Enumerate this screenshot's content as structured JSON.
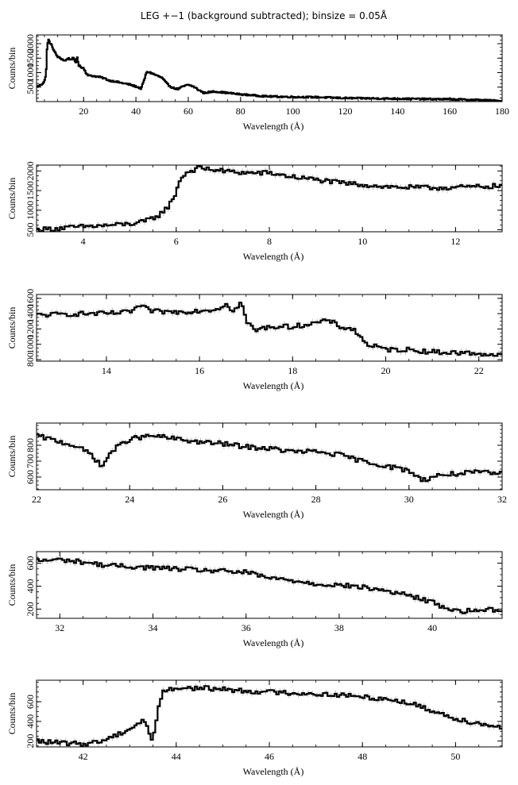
{
  "title": "LEG +−1 (background subtracted); binsize = 0.05Å",
  "colors": {
    "line": "#000000",
    "error": "#9a9a9a",
    "axis": "#000000"
  },
  "chart_data": [
    {
      "type": "line",
      "xlabel": "Wavelength (Å)",
      "ylabel": "Counts/bin",
      "xlim": [
        2,
        180
      ],
      "ylim": [
        0,
        2300
      ],
      "xticks": [
        20,
        40,
        60,
        80,
        100,
        120,
        140,
        160,
        180
      ],
      "yticks": [
        500,
        1000,
        1500,
        2000
      ],
      "ytick_labels": [
        "500",
        "1000",
        "1500",
        "2000"
      ],
      "series": [
        {
          "x": [
            2,
            4,
            5,
            5.6,
            6,
            6.5,
            7,
            8,
            9,
            10,
            12,
            13,
            14,
            15,
            16,
            17,
            17.5,
            18,
            19,
            20,
            21,
            22,
            24,
            26,
            28,
            30,
            32,
            34,
            36,
            38,
            40,
            42,
            43,
            44,
            45,
            46,
            48,
            50,
            52,
            54,
            56,
            58,
            60,
            62,
            64,
            66,
            70,
            80,
            90,
            100,
            110,
            120,
            130,
            140,
            150,
            160,
            170,
            180
          ],
          "y": [
            500,
            600,
            700,
            900,
            1800,
            2150,
            2050,
            1900,
            1700,
            1550,
            1450,
            1400,
            1500,
            1450,
            1500,
            1350,
            1600,
            1250,
            1200,
            1150,
            980,
            900,
            880,
            850,
            800,
            720,
            700,
            650,
            620,
            580,
            520,
            450,
            700,
            1000,
            1020,
            980,
            900,
            820,
            600,
            480,
            430,
            520,
            580,
            520,
            400,
            300,
            350,
            250,
            180,
            160,
            150,
            120,
            110,
            100,
            90,
            80,
            60,
            20
          ]
        }
      ]
    },
    {
      "type": "line",
      "xlabel": "Wavelength (Å)",
      "ylabel": "Counts/bin",
      "xlim": [
        3,
        13
      ],
      "ylim": [
        450,
        2150
      ],
      "xticks": [
        4,
        6,
        8,
        10,
        12
      ],
      "yticks": [
        500,
        1000,
        1500,
        2000
      ],
      "ytick_labels": [
        "500",
        "1000",
        "1500",
        "2000"
      ],
      "series": [
        {
          "x": [
            3,
            3.5,
            4,
            4.5,
            5,
            5.3,
            5.6,
            5.8,
            5.95,
            6.05,
            6.2,
            6.5,
            7,
            7.5,
            8,
            8.5,
            9,
            9.5,
            10,
            10.5,
            11,
            11.5,
            12,
            12.5,
            13
          ],
          "y": [
            500,
            540,
            580,
            610,
            650,
            700,
            850,
            1050,
            1300,
            1700,
            1950,
            2080,
            2000,
            1950,
            1950,
            1850,
            1780,
            1700,
            1650,
            1600,
            1580,
            1570,
            1580,
            1600,
            1620
          ]
        }
      ]
    },
    {
      "type": "line",
      "xlabel": "Wavelength (Å)",
      "ylabel": "Counts/bin",
      "xlim": [
        12.5,
        22.5
      ],
      "ylim": [
        780,
        1650
      ],
      "xticks": [
        14,
        16,
        18,
        20,
        22
      ],
      "yticks": [
        800,
        1000,
        1200,
        1400,
        1600
      ],
      "ytick_labels": [
        "800",
        "1000",
        "1200",
        "1400",
        "1600"
      ],
      "series": [
        {
          "x": [
            12.5,
            13,
            13.5,
            14,
            14.5,
            14.7,
            15,
            15.5,
            16,
            16.4,
            16.6,
            16.7,
            16.9,
            17.0,
            17.2,
            17.5,
            18,
            18.5,
            18.8,
            19,
            19.3,
            19.6,
            20,
            20.5,
            21,
            21.5,
            22,
            22.5
          ],
          "y": [
            1380,
            1390,
            1400,
            1400,
            1420,
            1500,
            1430,
            1420,
            1440,
            1460,
            1550,
            1400,
            1560,
            1300,
            1180,
            1230,
            1230,
            1280,
            1310,
            1230,
            1200,
            1000,
            930,
            930,
            900,
            890,
            880,
            850
          ]
        }
      ]
    },
    {
      "type": "line",
      "xlabel": "Wavelength (Å)",
      "ylabel": "Counts/bin",
      "xlim": [
        22,
        32
      ],
      "ylim": [
        520,
        940
      ],
      "xticks": [
        22,
        24,
        26,
        28,
        30,
        32
      ],
      "yticks": [
        600,
        700,
        800
      ],
      "ytick_labels": [
        "600",
        "700",
        "800"
      ],
      "series": [
        {
          "x": [
            22,
            22.4,
            22.8,
            23.2,
            23.4,
            23.6,
            24,
            24.5,
            25,
            25.5,
            26,
            26.5,
            27,
            27.5,
            28,
            28.5,
            29,
            29.5,
            30,
            30.3,
            30.6,
            31,
            31.5,
            32
          ],
          "y": [
            860,
            830,
            800,
            740,
            660,
            760,
            840,
            860,
            840,
            820,
            810,
            790,
            780,
            760,
            760,
            740,
            700,
            670,
            640,
            580,
            610,
            620,
            630,
            620
          ]
        }
      ]
    },
    {
      "type": "line",
      "xlabel": "Wavelength (Å)",
      "ylabel": "Counts/bin",
      "xlim": [
        31.5,
        41.5
      ],
      "ylim": [
        120,
        700
      ],
      "xticks": [
        32,
        34,
        36,
        38,
        40
      ],
      "yticks": [
        200,
        400,
        600
      ],
      "ytick_labels": [
        "200",
        "400",
        "600"
      ],
      "series": [
        {
          "x": [
            31.5,
            32,
            32.5,
            33,
            33.5,
            34,
            34.5,
            35,
            35.5,
            36,
            36.5,
            37,
            37.5,
            38,
            38.5,
            39,
            39.5,
            40,
            40.3,
            40.6,
            41,
            41.5
          ],
          "y": [
            620,
            630,
            610,
            580,
            570,
            560,
            550,
            540,
            530,
            520,
            470,
            450,
            420,
            410,
            390,
            360,
            320,
            260,
            210,
            180,
            190,
            200
          ]
        }
      ]
    },
    {
      "type": "line",
      "xlabel": "Wavelength (Å)",
      "ylabel": "Counts/bin",
      "xlim": [
        41,
        51
      ],
      "ylim": [
        140,
        820
      ],
      "xticks": [
        42,
        44,
        46,
        48,
        50
      ],
      "yticks": [
        200,
        400,
        600
      ],
      "ytick_labels": [
        "200",
        "400",
        "600"
      ],
      "series": [
        {
          "x": [
            41,
            41.5,
            42,
            42.4,
            42.7,
            42.9,
            43.1,
            43.3,
            43.5,
            43.6,
            43.7,
            44,
            44.5,
            45,
            45.5,
            46,
            46.5,
            47,
            47.5,
            48,
            48.5,
            49,
            49.5,
            50,
            50.5,
            51
          ],
          "y": [
            200,
            180,
            170,
            200,
            260,
            300,
            350,
            420,
            200,
            500,
            700,
            740,
            740,
            730,
            710,
            700,
            690,
            680,
            670,
            650,
            630,
            590,
            510,
            430,
            380,
            340
          ]
        }
      ]
    }
  ]
}
